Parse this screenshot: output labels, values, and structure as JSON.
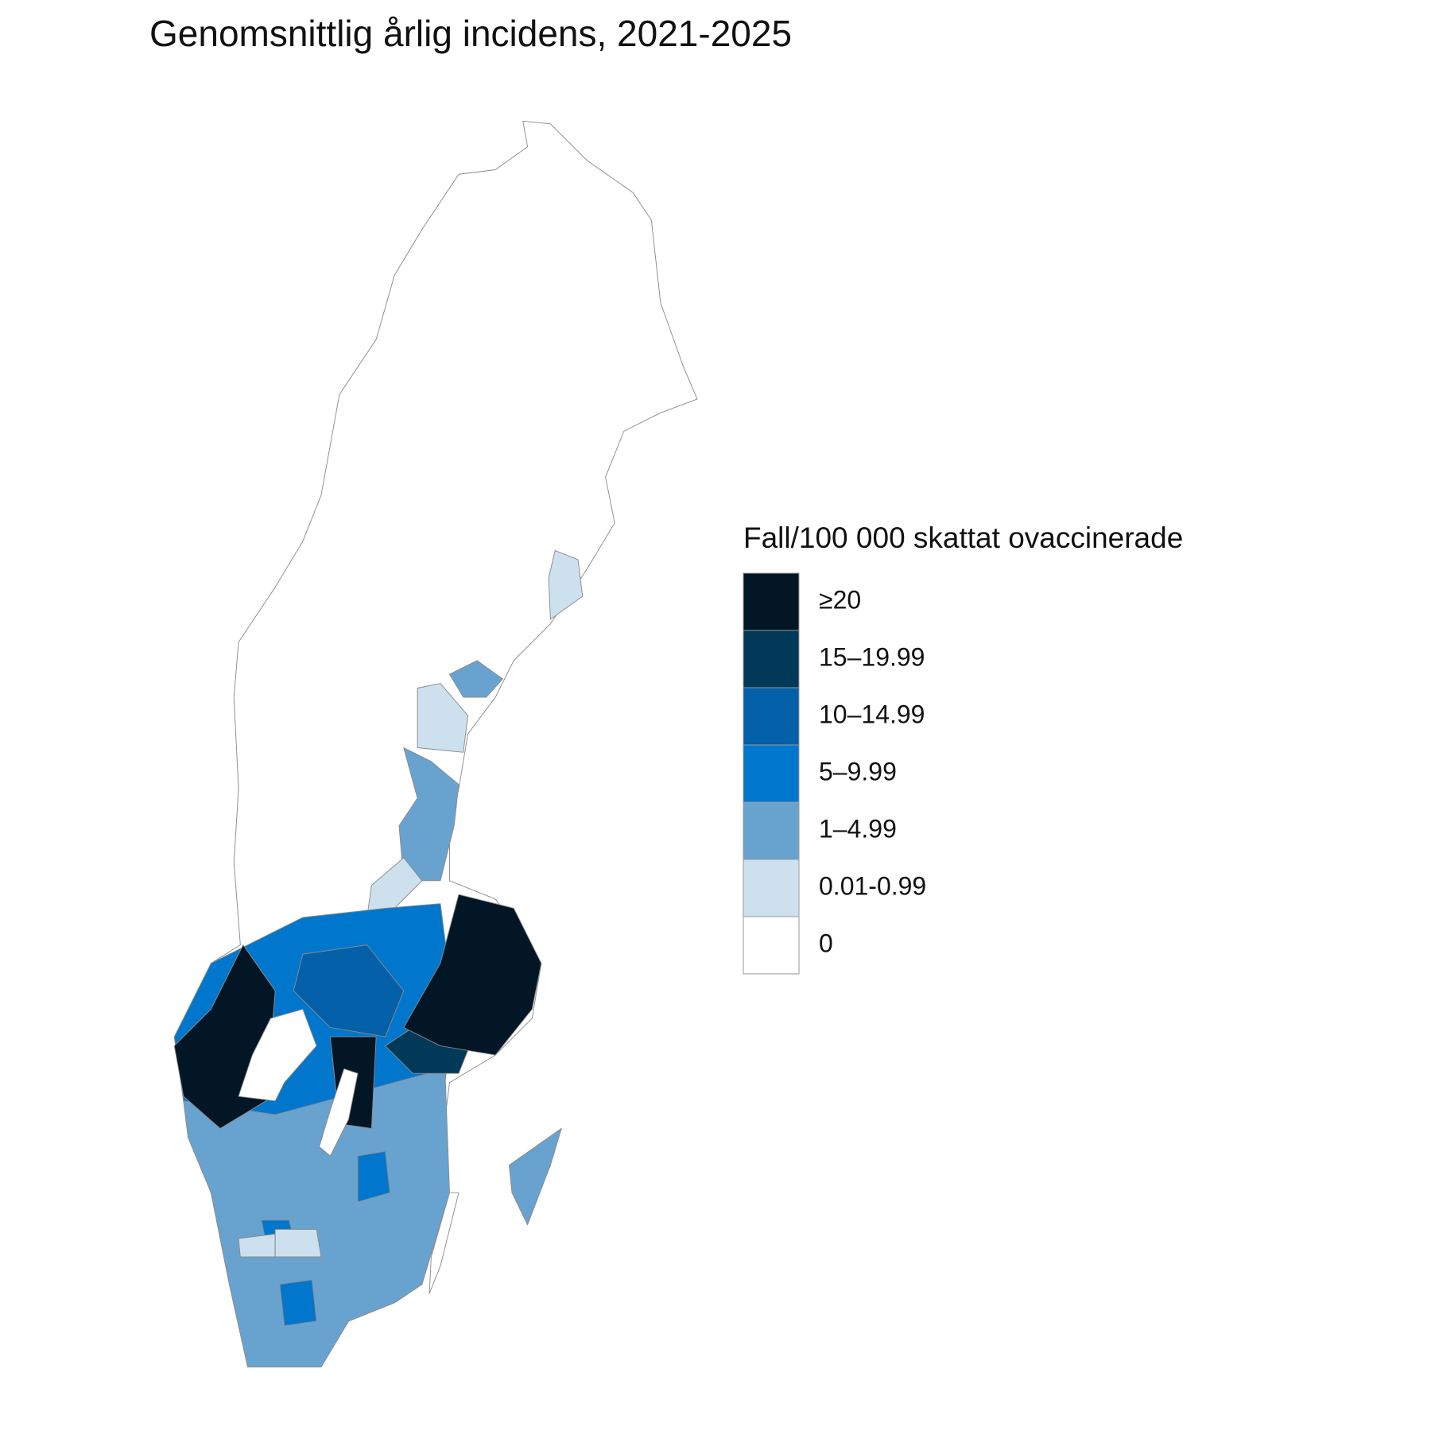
{
  "title": "Genomsnittlig årlig incidens, 2021-2025",
  "legend": {
    "title": "Fall/100 000 skattat ovaccinerade",
    "items": [
      {
        "label": "≥20",
        "color": "#021626"
      },
      {
        "label": "15–19.99",
        "color": "#023858"
      },
      {
        "label": "10–14.99",
        "color": "#0460a8"
      },
      {
        "label": "5–9.99",
        "color": "#0077cc"
      },
      {
        "label": "1–4.99",
        "color": "#68a3d0"
      },
      {
        "label": "0.01-0.99",
        "color": "#cde0ee"
      },
      {
        "label": "0",
        "color": "#ffffff"
      }
    ]
  }
}
